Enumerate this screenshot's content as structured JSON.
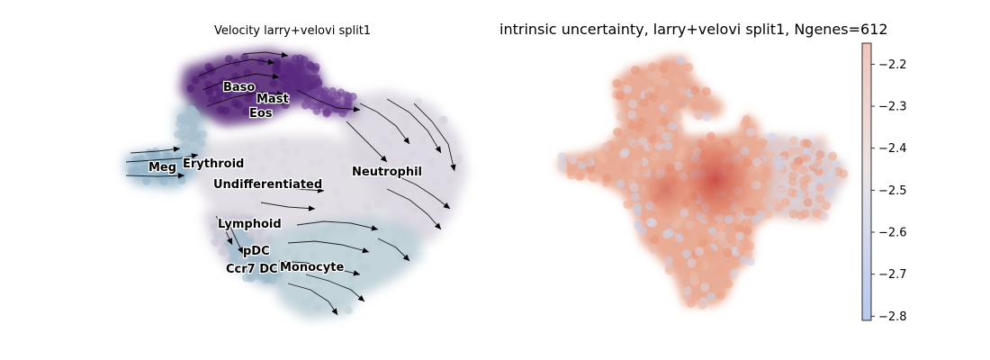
{
  "chart_data": [
    {
      "type": "scatter",
      "subtype": "velocity-stream-embedding",
      "title": "Velocity larry+velovi split1",
      "xlabel": "",
      "ylabel": "",
      "axes_visible": false,
      "grid": false,
      "streamlines": true,
      "clusters": [
        {
          "name": "Baso",
          "color": "#4b1a6e"
        },
        {
          "name": "Mast",
          "color": "#5a2a80"
        },
        {
          "name": "Eos",
          "color": "#6b3d8f"
        },
        {
          "name": "Meg",
          "color": "#8fb0c6"
        },
        {
          "name": "Erythroid",
          "color": "#a7c0cf"
        },
        {
          "name": "Neutrophil",
          "color": "#d8d4de"
        },
        {
          "name": "Undifferentiated",
          "color": "#ddd8e0"
        },
        {
          "name": "Lymphoid",
          "color": "#c9c4d4"
        },
        {
          "name": "pDC",
          "color": "#a6bfd0"
        },
        {
          "name": "Ccr7 DC",
          "color": "#9fb9c9"
        },
        {
          "name": "Monocyte",
          "color": "#b9cdd4"
        }
      ]
    },
    {
      "type": "scatter",
      "subtype": "continuous-colored-embedding",
      "title": "intrinsic uncertainty, larry+velovi split1, Ngenes=612",
      "xlabel": "",
      "ylabel": "",
      "axes_visible": false,
      "grid": false,
      "colormap": "coolwarm",
      "colorbar": {
        "ticks": [
          "−2.2",
          "−2.3",
          "−2.4",
          "−2.5",
          "−2.6",
          "−2.7",
          "−2.8"
        ],
        "tick_values": [
          -2.2,
          -2.3,
          -2.4,
          -2.5,
          -2.6,
          -2.7,
          -2.8
        ],
        "range": [
          -2.81,
          -2.15
        ]
      }
    }
  ]
}
